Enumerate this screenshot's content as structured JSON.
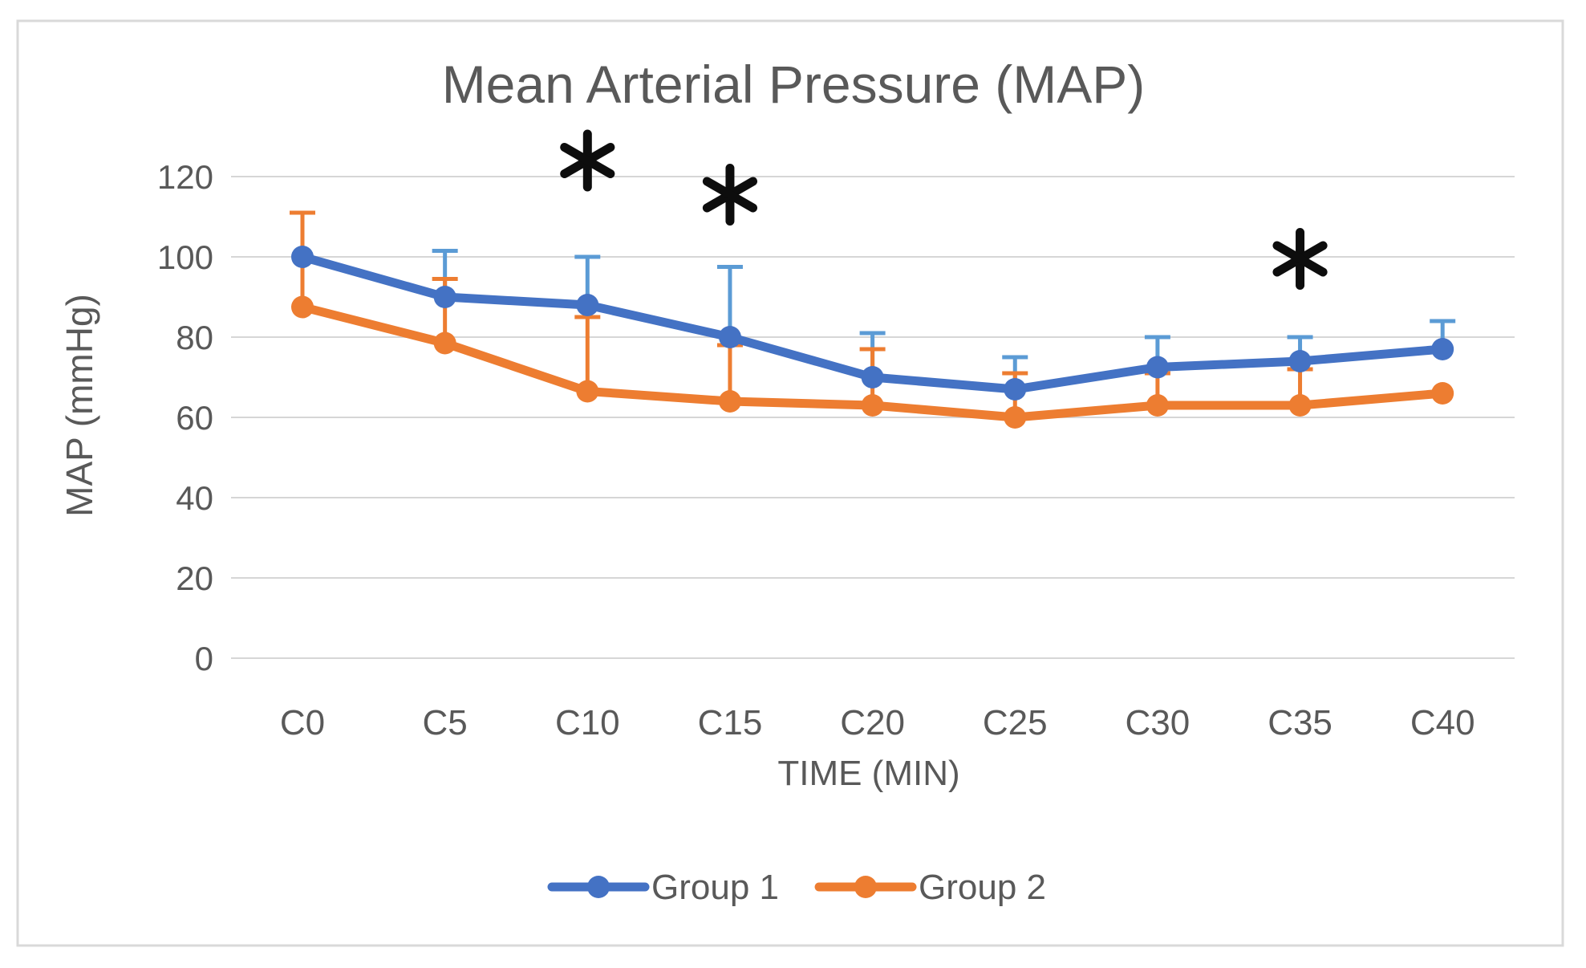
{
  "figure": {
    "border_color": "#D9D9D9",
    "background": "#FFFFFF"
  },
  "chart_data": {
    "type": "line",
    "title": "Mean Arterial Pressure (MAP)",
    "xlabel": "TIME (MIN)",
    "ylabel": "MAP (mmHg)",
    "categories": [
      "C0",
      "C5",
      "C10",
      "C15",
      "C20",
      "C25",
      "C30",
      "C35",
      "C40"
    ],
    "yticks": [
      0,
      20,
      40,
      60,
      80,
      100,
      120
    ],
    "ylim": [
      0,
      130
    ],
    "grid": true,
    "gridline_color": "#D6D6D6",
    "text_color": "#595959",
    "legend_position": "bottom-center",
    "series": [
      {
        "name": "Group 1",
        "color": "#4472C4",
        "error_color": "#5B9BD5",
        "values": [
          100,
          90,
          88,
          80,
          70,
          67,
          72.5,
          74,
          77
        ],
        "error_upper": [
          null,
          101.5,
          100,
          97.5,
          81,
          75,
          80,
          80,
          84
        ]
      },
      {
        "name": "Group 2",
        "color": "#ED7D31",
        "error_color": "#ED7D31",
        "values": [
          87.5,
          78.5,
          66.5,
          64,
          63,
          60,
          63,
          63,
          66
        ],
        "error_upper": [
          111,
          94.5,
          85,
          78,
          77,
          71,
          71,
          72,
          null
        ]
      }
    ],
    "annotations": [
      {
        "symbol": "*",
        "meaning": "significance-marker",
        "category": "C10",
        "category_index": 2,
        "y_value": 124
      },
      {
        "symbol": "*",
        "meaning": "significance-marker",
        "category": "C15",
        "category_index": 3,
        "y_value": 115.5
      },
      {
        "symbol": "*",
        "meaning": "significance-marker",
        "category": "C35",
        "category_index": 7,
        "y_value": 99.5
      }
    ],
    "annotation_color": "#0D0D0D"
  }
}
